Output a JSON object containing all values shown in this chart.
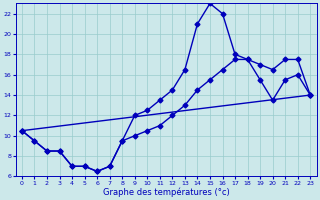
{
  "background_color": "#cce8ea",
  "grid_color": "#99cccc",
  "line_color": "#0000bb",
  "xlim": [
    -0.5,
    23.5
  ],
  "ylim": [
    6,
    23
  ],
  "xticks": [
    0,
    1,
    2,
    3,
    4,
    5,
    6,
    7,
    8,
    9,
    10,
    11,
    12,
    13,
    14,
    15,
    16,
    17,
    18,
    19,
    20,
    21,
    22,
    23
  ],
  "yticks": [
    6,
    8,
    10,
    12,
    14,
    16,
    18,
    20,
    22
  ],
  "curve1_x": [
    0,
    1,
    2,
    3,
    4,
    5,
    6,
    7,
    8,
    9,
    10,
    11,
    12,
    13,
    14,
    15,
    16,
    17,
    18,
    19,
    20,
    21,
    22,
    23
  ],
  "curve1_y": [
    10.5,
    9.5,
    8.5,
    8.5,
    7.0,
    7.0,
    6.5,
    7.0,
    9.5,
    12.0,
    12.5,
    13.5,
    14.5,
    16.5,
    21.0,
    23.0,
    22.0,
    18.0,
    17.5,
    15.5,
    13.5,
    15.5,
    16.0,
    14.0
  ],
  "curve2_x": [
    0,
    1,
    2,
    3,
    4,
    5,
    6,
    7,
    8,
    9,
    10,
    11,
    12,
    13,
    14,
    15,
    16,
    17,
    18,
    19,
    20,
    21,
    22,
    23
  ],
  "curve2_y": [
    10.5,
    9.5,
    8.5,
    8.5,
    7.0,
    7.0,
    6.5,
    7.0,
    9.5,
    10.0,
    10.5,
    11.0,
    12.0,
    13.0,
    14.5,
    15.5,
    16.5,
    17.5,
    17.5,
    17.0,
    16.5,
    17.5,
    17.5,
    14.0
  ],
  "curve3_x": [
    0,
    23
  ],
  "curve3_y": [
    10.5,
    14.0
  ],
  "xlabel": "Graphe des températures (°c)",
  "marker": "D",
  "marker_size": 2.5,
  "linewidth": 1.0
}
